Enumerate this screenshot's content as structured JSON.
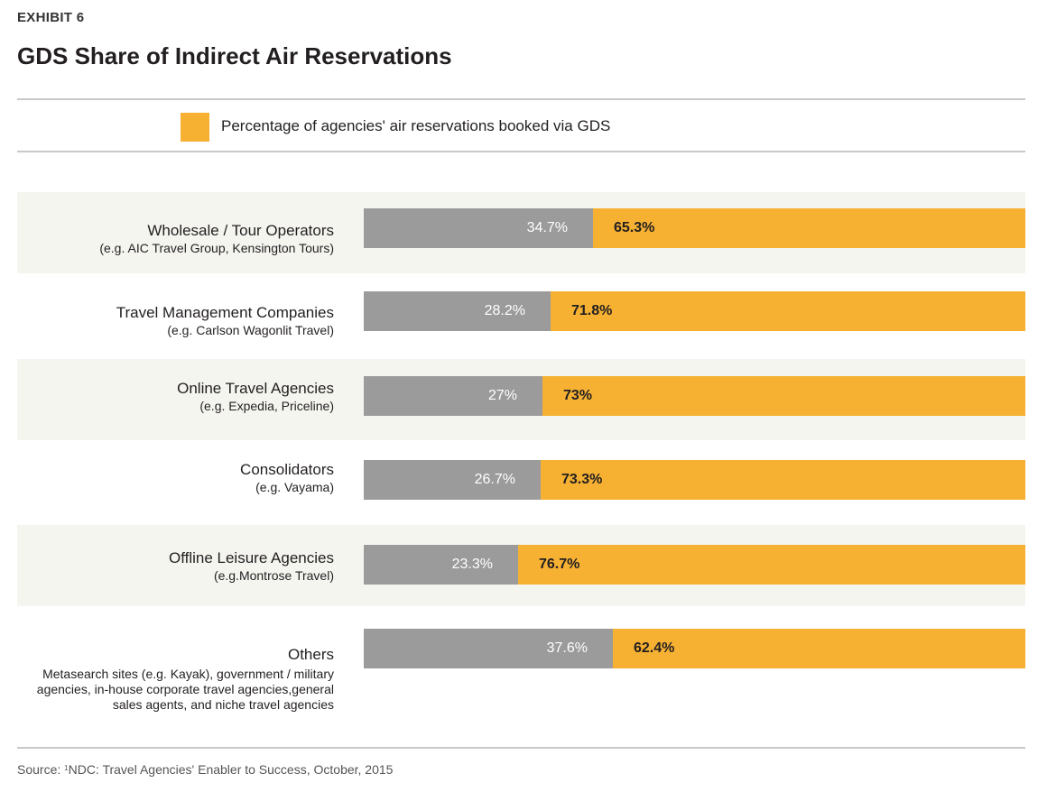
{
  "header": {
    "exhibit": "EXHIBIT 6",
    "title": "GDS Share of Indirect Air Reservations"
  },
  "legend": {
    "label": "Percentage of agencies' air reservations booked via GDS",
    "color": "#f6b133"
  },
  "colors": {
    "gds": "#f6b133",
    "other": "#9b9b9b",
    "band": "#f5f5f0"
  },
  "chart_data": {
    "type": "bar",
    "orientation": "horizontal",
    "stacked": true,
    "percent_stacked": true,
    "title": "GDS Share of Indirect Air Reservations",
    "categories": [
      "Wholesale / Tour Operators",
      "Travel Management Companies",
      "Online Travel Agencies",
      "Consolidators",
      "Offline Leisure Agencies",
      "Others"
    ],
    "category_examples": [
      "(e.g. AIC Travel Group, Kensington Tours)",
      "(e.g. Carlson Wagonlit Travel)",
      "(e.g. Expedia, Priceline)",
      "(e.g. Vayama)",
      "(e.g.Montrose Travel)",
      "Metasearch sites (e.g. Kayak), government / military agencies, in-house corporate travel agencies,general sales agents, and niche travel agencies"
    ],
    "series": [
      {
        "values": [
          34.7,
          28.2,
          27,
          26.7,
          23.3,
          37.6
        ],
        "labels": [
          "34.7%",
          "28.2%",
          "27%",
          "26.7%",
          "23.3%",
          "37.6%"
        ]
      },
      {
        "name": "Percentage of agencies' air reservations booked via GDS",
        "values": [
          65.3,
          71.8,
          73,
          73.3,
          76.7,
          62.4
        ],
        "labels": [
          "65.3%",
          "71.8%",
          "73%",
          "73.3%",
          "76.7%",
          "62.4%"
        ]
      }
    ],
    "xlim": [
      0,
      100
    ],
    "grid": false,
    "legend_position": "top"
  },
  "footer": {
    "source_prefix": "Source:",
    "source_marker": "1",
    "source_text": "NDC: Travel Agencies' Enabler to Success, October, 2015"
  }
}
